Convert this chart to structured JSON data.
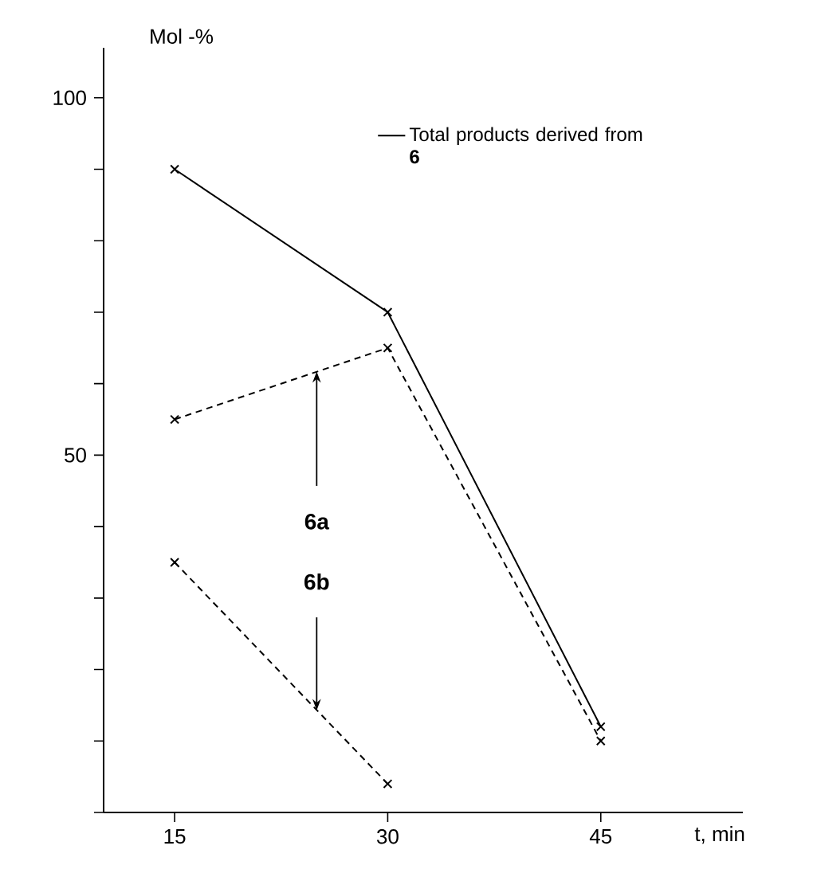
{
  "chart_data": {
    "type": "line",
    "xlabel": "t, min",
    "ylabel": "Mol  -%",
    "xlim": [
      10,
      55
    ],
    "xticks": [
      15,
      30,
      45
    ],
    "ylim": [
      0,
      107
    ],
    "yticks": [
      {
        "value": 0,
        "label": null
      },
      {
        "value": 10,
        "label": null
      },
      {
        "value": 20,
        "label": null
      },
      {
        "value": 30,
        "label": null
      },
      {
        "value": 40,
        "label": null
      },
      50,
      {
        "value": 60,
        "label": null
      },
      {
        "value": 70,
        "label": null
      },
      {
        "value": 80,
        "label": null
      },
      {
        "value": 90,
        "label": null
      },
      100
    ],
    "marker": "cross",
    "legend": "top right",
    "grid": false,
    "series": [
      {
        "name": "Total products derived from **6**",
        "color": "#000000",
        "line_style": "solid",
        "x": [
          15,
          30,
          45
        ],
        "values": [
          90,
          70,
          12
        ]
      },
      {
        "color": "#000000",
        "line_style": "dashed",
        "x": [
          15,
          30,
          45
        ],
        "values": [
          55,
          65,
          10
        ]
      },
      {
        "color": "#000000",
        "line_style": "dashed",
        "x": [
          15,
          30
        ],
        "values": [
          35,
          4
        ]
      }
    ],
    "annotations": [
      {
        "text": "6a",
        "x": 25,
        "y": 61.7
      },
      {
        "text": "6b",
        "x": 25,
        "y": 14.3
      }
    ]
  }
}
